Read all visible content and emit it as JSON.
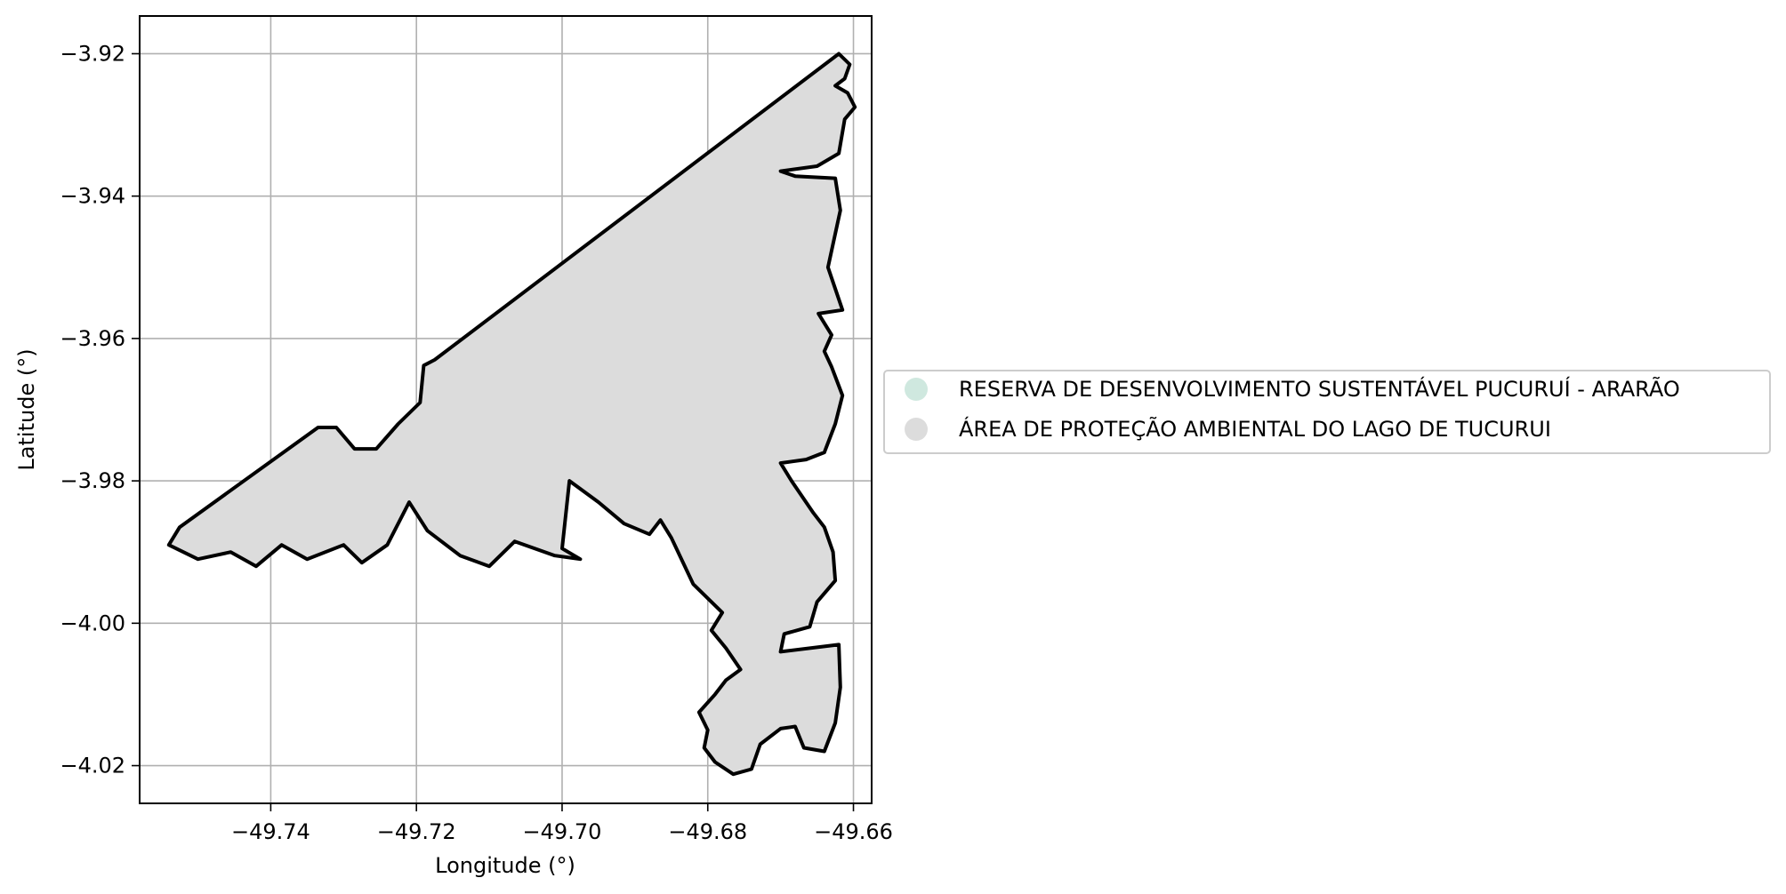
{
  "chart_data": {
    "type": "map",
    "xlabel": "Longitude (°)",
    "ylabel": "Latitude (°)",
    "xlim": [
      -49.758,
      -49.6575
    ],
    "ylim": [
      -4.0253,
      -3.9147
    ],
    "x_ticks": [
      -49.74,
      -49.72,
      -49.7,
      -49.68,
      -49.66
    ],
    "x_tick_labels": [
      "−49.74",
      "−49.72",
      "−49.70",
      "−49.68",
      "−49.66"
    ],
    "y_ticks": [
      -3.92,
      -3.94,
      -3.96,
      -3.98,
      -4.0,
      -4.02
    ],
    "y_tick_labels": [
      "−3.92",
      "−3.94",
      "−3.96",
      "−3.98",
      "−4.00",
      "−4.02"
    ],
    "grid": true,
    "legend_position": "right",
    "legend": [
      {
        "label": "RESERVA DE DESENVOLVIMENTO SUSTENTÁVEL PUCURUÍ - ARARÃO",
        "color": "#cfe8df"
      },
      {
        "label": "ÁREA DE PROTEÇÃO AMBIENTAL DO LAGO DE TUCURUI",
        "color": "#dcdcdc"
      }
    ],
    "polygon_fill": "#dcdcdc",
    "polygon_stroke": "#000000",
    "polygon": [
      [
        -49.662,
        -3.92
      ],
      [
        -49.6605,
        -3.9215
      ],
      [
        -49.6612,
        -3.9235
      ],
      [
        -49.6625,
        -3.9245
      ],
      [
        -49.6608,
        -3.9255
      ],
      [
        -49.6598,
        -3.9275
      ],
      [
        -49.6612,
        -3.9292
      ],
      [
        -49.662,
        -3.934
      ],
      [
        -49.665,
        -3.9358
      ],
      [
        -49.67,
        -3.9365
      ],
      [
        -49.668,
        -3.9372
      ],
      [
        -49.6625,
        -3.9375
      ],
      [
        -49.6618,
        -3.942
      ],
      [
        -49.6635,
        -3.95
      ],
      [
        -49.6615,
        -3.956
      ],
      [
        -49.6648,
        -3.9565
      ],
      [
        -49.663,
        -3.9595
      ],
      [
        -49.664,
        -3.9618
      ],
      [
        -49.663,
        -3.964
      ],
      [
        -49.6615,
        -3.968
      ],
      [
        -49.6625,
        -3.972
      ],
      [
        -49.664,
        -3.976
      ],
      [
        -49.6665,
        -3.977
      ],
      [
        -49.67,
        -3.9775
      ],
      [
        -49.6685,
        -3.98
      ],
      [
        -49.6655,
        -3.9845
      ],
      [
        -49.664,
        -3.9865
      ],
      [
        -49.6628,
        -3.99
      ],
      [
        -49.6625,
        -3.994
      ],
      [
        -49.665,
        -3.997
      ],
      [
        -49.666,
        -4.0005
      ],
      [
        -49.6695,
        -4.0015
      ],
      [
        -49.67,
        -4.004
      ],
      [
        -49.662,
        -4.003
      ],
      [
        -49.6618,
        -4.009
      ],
      [
        -49.6625,
        -4.014
      ],
      [
        -49.664,
        -4.018
      ],
      [
        -49.6668,
        -4.0175
      ],
      [
        -49.668,
        -4.0145
      ],
      [
        -49.67,
        -4.0148
      ],
      [
        -49.6728,
        -4.017
      ],
      [
        -49.674,
        -4.0205
      ],
      [
        -49.6765,
        -4.0212
      ],
      [
        -49.679,
        -4.0195
      ],
      [
        -49.6805,
        -4.0175
      ],
      [
        -49.68,
        -4.015
      ],
      [
        -49.6812,
        -4.0125
      ],
      [
        -49.679,
        -4.01
      ],
      [
        -49.6775,
        -4.008
      ],
      [
        -49.6755,
        -4.0065
      ],
      [
        -49.6775,
        -4.0035
      ],
      [
        -49.6795,
        -4.001
      ],
      [
        -49.678,
        -3.9985
      ],
      [
        -49.682,
        -3.9945
      ],
      [
        -49.685,
        -3.988
      ],
      [
        -49.6865,
        -3.9855
      ],
      [
        -49.688,
        -3.9875
      ],
      [
        -49.6915,
        -3.986
      ],
      [
        -49.695,
        -3.983
      ],
      [
        -49.699,
        -3.98
      ],
      [
        -49.7,
        -3.9895
      ],
      [
        -49.6975,
        -3.991
      ],
      [
        -49.701,
        -3.9905
      ],
      [
        -49.7065,
        -3.9885
      ],
      [
        -49.71,
        -3.992
      ],
      [
        -49.714,
        -3.9905
      ],
      [
        -49.7185,
        -3.987
      ],
      [
        -49.721,
        -3.983
      ],
      [
        -49.724,
        -3.989
      ],
      [
        -49.7275,
        -3.9915
      ],
      [
        -49.73,
        -3.989
      ],
      [
        -49.735,
        -3.991
      ],
      [
        -49.7385,
        -3.989
      ],
      [
        -49.742,
        -3.992
      ],
      [
        -49.7455,
        -3.99
      ],
      [
        -49.75,
        -3.991
      ],
      [
        -49.754,
        -3.989
      ],
      [
        -49.7525,
        -3.9865
      ],
      [
        -49.7335,
        -3.9725
      ],
      [
        -49.731,
        -3.9725
      ],
      [
        -49.7285,
        -3.9755
      ],
      [
        -49.7255,
        -3.9755
      ],
      [
        -49.7225,
        -3.972
      ],
      [
        -49.7195,
        -3.969
      ],
      [
        -49.719,
        -3.9638
      ],
      [
        -49.7175,
        -3.963
      ],
      [
        -49.662,
        -3.92
      ]
    ]
  }
}
